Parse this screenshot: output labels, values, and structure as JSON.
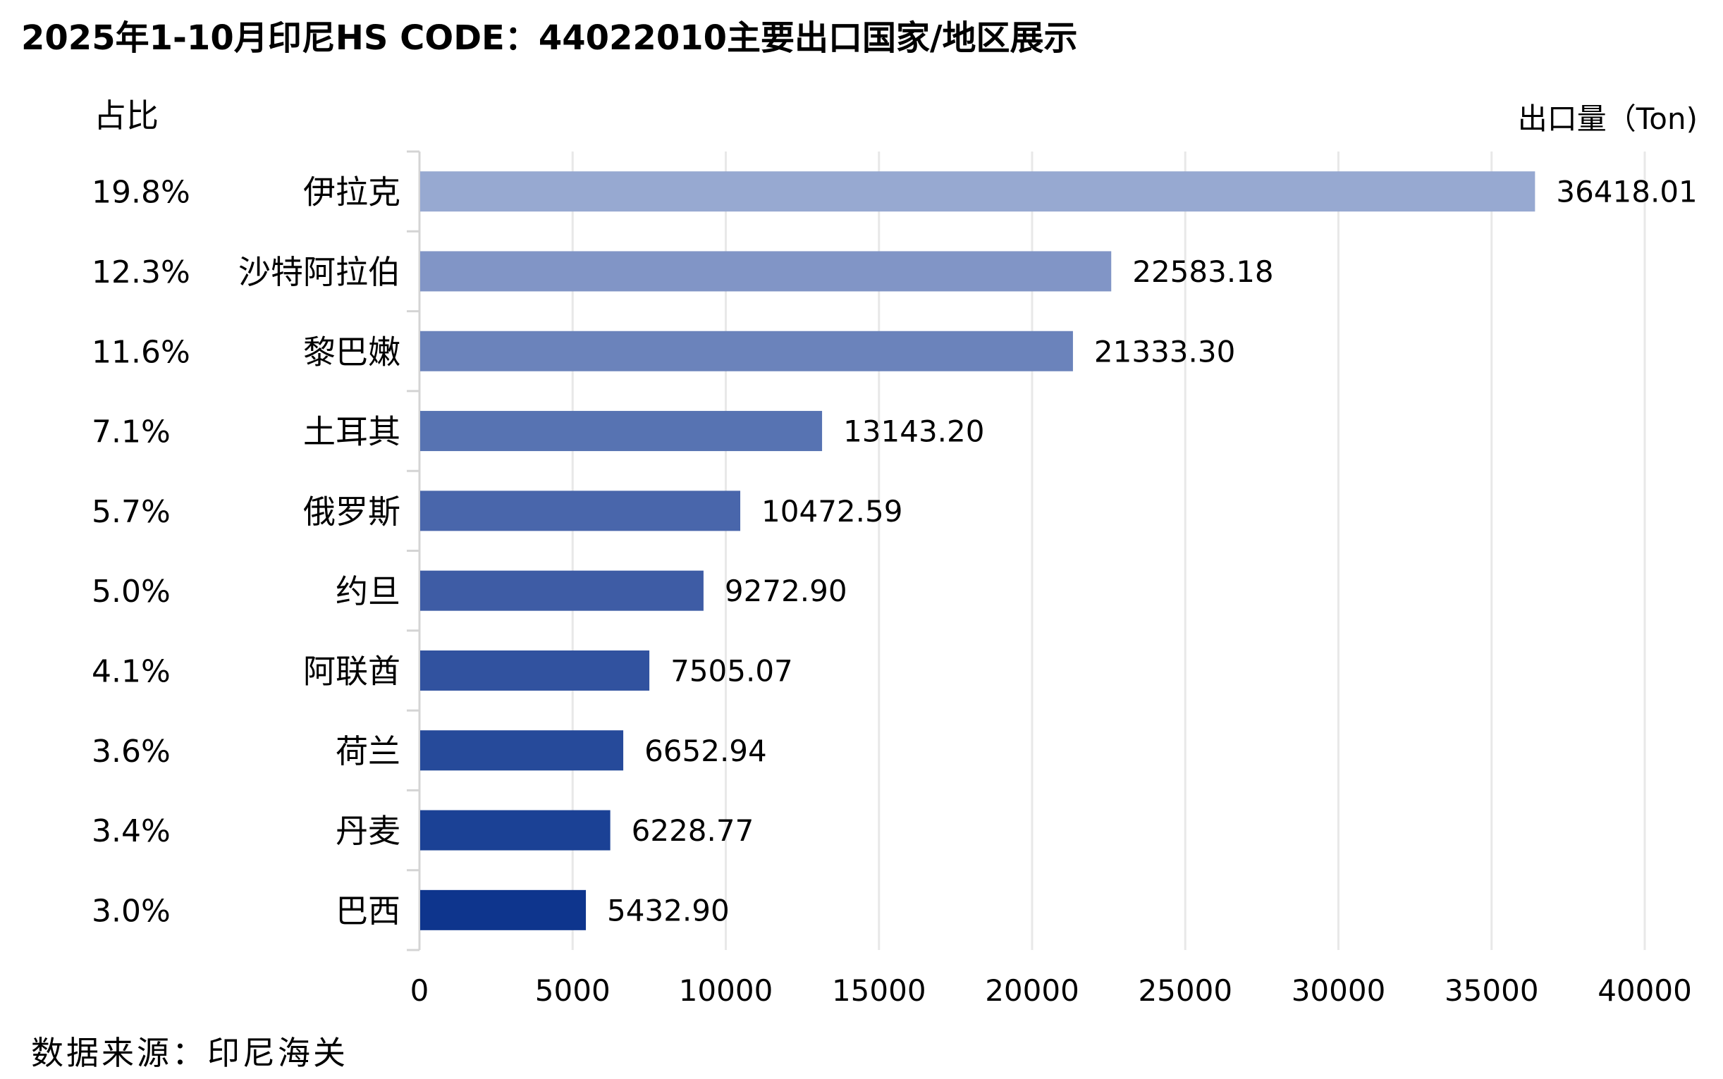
{
  "title": "2025年1-10月印尼HS CODE：44022010主要出口国家/地区展示",
  "share_header": "占比",
  "unit_label": "出口量（Ton)",
  "source": "数据来源：印尼海关",
  "chart_data": {
    "type": "bar",
    "orientation": "horizontal",
    "categories": [
      "伊拉克",
      "沙特阿拉伯",
      "黎巴嫩",
      "土耳其",
      "俄罗斯",
      "约旦",
      "阿联酋",
      "荷兰",
      "丹麦",
      "巴西"
    ],
    "values": [
      36418.01,
      22583.18,
      21333.3,
      13143.2,
      10472.59,
      9272.9,
      7505.07,
      6652.94,
      6228.77,
      5432.9
    ],
    "value_labels": [
      "36418.01",
      "22583.18",
      "21333.30",
      "13143.20",
      "10472.59",
      "9272.90",
      "7505.07",
      "6652.94",
      "6228.77",
      "5432.90"
    ],
    "shares": [
      "19.8%",
      "12.3%",
      "11.6%",
      "7.1%",
      "5.7%",
      "5.0%",
      "4.1%",
      "3.6%",
      "3.4%",
      "3.0%"
    ],
    "xlim": [
      0,
      40000
    ],
    "xticks": [
      0,
      5000,
      10000,
      15000,
      20000,
      25000,
      30000,
      35000,
      40000
    ],
    "grid": true,
    "colors": [
      "#97a9d1",
      "#8195c6",
      "#6b83bb",
      "#5773b2",
      "#4966ab",
      "#3e5ca5",
      "#31529f",
      "#264a9a",
      "#1b4195",
      "#0e358d"
    ]
  }
}
